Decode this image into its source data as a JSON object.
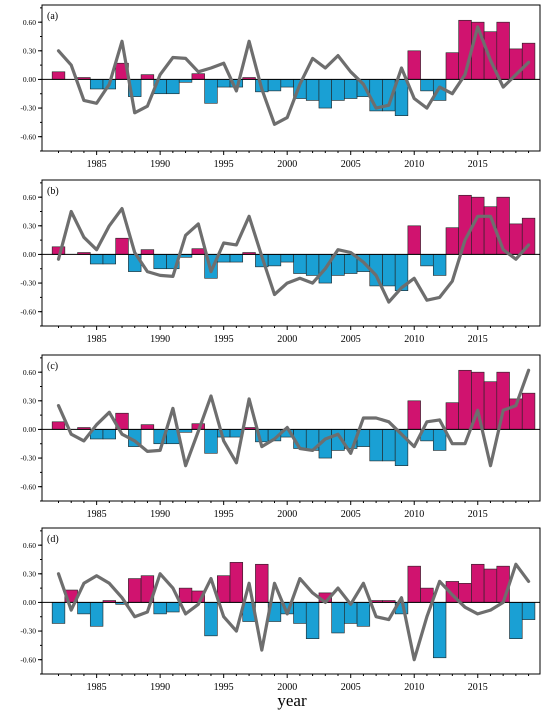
{
  "xlabel": "year",
  "chart_data": [
    {
      "type": "bar+line",
      "panel_label": "(a)",
      "x": [
        1982,
        1983,
        1984,
        1985,
        1986,
        1987,
        1988,
        1989,
        1990,
        1991,
        1992,
        1993,
        1994,
        1995,
        1996,
        1997,
        1998,
        1999,
        2000,
        2001,
        2002,
        2003,
        2004,
        2005,
        2006,
        2007,
        2008,
        2009,
        2010,
        2011,
        2012,
        2013,
        2014,
        2015,
        2016,
        2017,
        2018,
        2019
      ],
      "bars": [
        0.08,
        0.0,
        0.02,
        -0.1,
        -0.1,
        0.17,
        -0.18,
        0.05,
        -0.15,
        -0.15,
        -0.03,
        0.06,
        -0.25,
        -0.08,
        -0.08,
        0.02,
        -0.13,
        -0.12,
        -0.08,
        -0.2,
        -0.22,
        -0.3,
        -0.22,
        -0.2,
        -0.18,
        -0.33,
        -0.33,
        -0.38,
        0.3,
        -0.12,
        -0.22,
        0.28,
        0.62,
        0.6,
        0.5,
        0.6,
        0.32,
        0.38
      ],
      "line": [
        0.3,
        0.15,
        -0.22,
        -0.25,
        -0.05,
        0.4,
        -0.35,
        -0.28,
        0.05,
        0.23,
        0.22,
        0.08,
        0.12,
        0.17,
        -0.12,
        0.4,
        -0.1,
        -0.47,
        -0.4,
        -0.05,
        0.22,
        0.12,
        0.25,
        0.08,
        -0.05,
        -0.3,
        -0.27,
        0.12,
        -0.2,
        -0.3,
        -0.08,
        -0.15,
        0.05,
        0.55,
        0.2,
        -0.08,
        0.05,
        0.18
      ],
      "yticks": [
        "0.60",
        "0.30",
        "0.00",
        "-0.30",
        "-0.60"
      ],
      "ylim": [
        -0.75,
        0.78
      ],
      "xticks": [
        "1985",
        "1990",
        "1995",
        "2000",
        "2005",
        "2010",
        "2015"
      ]
    },
    {
      "type": "bar+line",
      "panel_label": "(b)",
      "x": [
        1982,
        1983,
        1984,
        1985,
        1986,
        1987,
        1988,
        1989,
        1990,
        1991,
        1992,
        1993,
        1994,
        1995,
        1996,
        1997,
        1998,
        1999,
        2000,
        2001,
        2002,
        2003,
        2004,
        2005,
        2006,
        2007,
        2008,
        2009,
        2010,
        2011,
        2012,
        2013,
        2014,
        2015,
        2016,
        2017,
        2018,
        2019
      ],
      "bars": [
        0.08,
        0.0,
        0.02,
        -0.1,
        -0.1,
        0.17,
        -0.18,
        0.05,
        -0.15,
        -0.15,
        -0.03,
        0.06,
        -0.25,
        -0.08,
        -0.08,
        0.02,
        -0.13,
        -0.12,
        -0.08,
        -0.2,
        -0.22,
        -0.3,
        -0.22,
        -0.2,
        -0.18,
        -0.33,
        -0.33,
        -0.38,
        0.3,
        -0.12,
        -0.22,
        0.28,
        0.62,
        0.6,
        0.5,
        0.6,
        0.32,
        0.38
      ],
      "line": [
        -0.05,
        0.45,
        0.18,
        0.05,
        0.3,
        0.48,
        0.02,
        -0.18,
        -0.22,
        -0.23,
        0.2,
        0.32,
        -0.18,
        0.12,
        0.1,
        0.4,
        -0.02,
        -0.42,
        -0.3,
        -0.25,
        -0.3,
        -0.15,
        0.05,
        0.02,
        -0.08,
        -0.22,
        -0.5,
        -0.35,
        -0.25,
        -0.48,
        -0.45,
        -0.28,
        0.15,
        0.4,
        0.4,
        0.05,
        -0.05,
        0.1
      ],
      "yticks": [
        "0.60",
        "0.30",
        "0.00",
        "-0.30",
        "-0.60"
      ],
      "ylim": [
        -0.75,
        0.78
      ],
      "xticks": [
        "1985",
        "1990",
        "1995",
        "2000",
        "2005",
        "2010",
        "2015"
      ]
    },
    {
      "type": "bar+line",
      "panel_label": "(c)",
      "x": [
        1982,
        1983,
        1984,
        1985,
        1986,
        1987,
        1988,
        1989,
        1990,
        1991,
        1992,
        1993,
        1994,
        1995,
        1996,
        1997,
        1998,
        1999,
        2000,
        2001,
        2002,
        2003,
        2004,
        2005,
        2006,
        2007,
        2008,
        2009,
        2010,
        2011,
        2012,
        2013,
        2014,
        2015,
        2016,
        2017,
        2018,
        2019
      ],
      "bars": [
        0.08,
        0.0,
        0.02,
        -0.1,
        -0.1,
        0.17,
        -0.18,
        0.05,
        -0.15,
        -0.15,
        -0.03,
        0.06,
        -0.25,
        -0.08,
        -0.08,
        0.02,
        -0.13,
        -0.12,
        -0.08,
        -0.2,
        -0.22,
        -0.3,
        -0.22,
        -0.2,
        -0.18,
        -0.33,
        -0.33,
        -0.38,
        0.3,
        -0.12,
        -0.22,
        0.28,
        0.62,
        0.6,
        0.5,
        0.6,
        0.32,
        0.38
      ],
      "line": [
        0.25,
        -0.05,
        -0.12,
        0.05,
        0.18,
        -0.05,
        -0.12,
        -0.23,
        -0.22,
        0.22,
        -0.38,
        -0.02,
        0.35,
        -0.12,
        -0.35,
        0.32,
        -0.18,
        -0.1,
        0.02,
        -0.2,
        -0.22,
        -0.1,
        -0.05,
        -0.25,
        0.12,
        0.12,
        0.08,
        -0.05,
        -0.18,
        0.08,
        0.1,
        -0.15,
        -0.15,
        0.2,
        -0.38,
        0.2,
        0.25,
        0.62
      ],
      "yticks": [
        "0.60",
        "0.30",
        "0.00",
        "-0.30",
        "-0.60"
      ],
      "ylim": [
        -0.75,
        0.78
      ],
      "xticks": [
        "1985",
        "1990",
        "1995",
        "2000",
        "2005",
        "2010",
        "2015"
      ]
    },
    {
      "type": "bar+line",
      "panel_label": "(d)",
      "x": [
        1982,
        1983,
        1984,
        1985,
        1986,
        1987,
        1988,
        1989,
        1990,
        1991,
        1992,
        1993,
        1994,
        1995,
        1996,
        1997,
        1998,
        1999,
        2000,
        2001,
        2002,
        2003,
        2004,
        2005,
        2006,
        2007,
        2008,
        2009,
        2010,
        2011,
        2012,
        2013,
        2014,
        2015,
        2016,
        2017,
        2018,
        2019
      ],
      "bars": [
        -0.22,
        0.13,
        -0.12,
        -0.25,
        0.02,
        -0.02,
        0.25,
        0.28,
        -0.12,
        -0.1,
        0.15,
        0.12,
        -0.35,
        0.28,
        0.42,
        -0.2,
        0.4,
        -0.2,
        -0.12,
        -0.22,
        -0.38,
        0.1,
        -0.32,
        -0.22,
        -0.25,
        0.02,
        0.02,
        -0.12,
        0.38,
        0.15,
        -0.58,
        0.22,
        0.2,
        0.4,
        0.35,
        0.38,
        -0.38,
        -0.18
      ],
      "line": [
        0.3,
        -0.08,
        0.2,
        0.28,
        0.2,
        0.05,
        -0.15,
        -0.1,
        0.3,
        0.15,
        -0.12,
        -0.02,
        0.25,
        -0.15,
        -0.3,
        0.2,
        -0.5,
        0.2,
        -0.12,
        0.25,
        0.1,
        0.0,
        0.15,
        -0.02,
        0.2,
        -0.15,
        -0.18,
        0.05,
        -0.6,
        -0.15,
        0.22,
        0.08,
        -0.05,
        -0.12,
        -0.08,
        0.0,
        0.4,
        0.22
      ],
      "yticks": [
        "0.60",
        "0.30",
        "0.00",
        "-0.30",
        "-0.60"
      ],
      "ylim": [
        -0.75,
        0.78
      ],
      "xticks": [
        "1985",
        "1990",
        "1995",
        "2000",
        "2005",
        "2010",
        "2015"
      ]
    }
  ],
  "colors": {
    "positive_bar": "#d0136f",
    "negative_bar": "#1aa0d4",
    "line": "#6e6e6e"
  }
}
